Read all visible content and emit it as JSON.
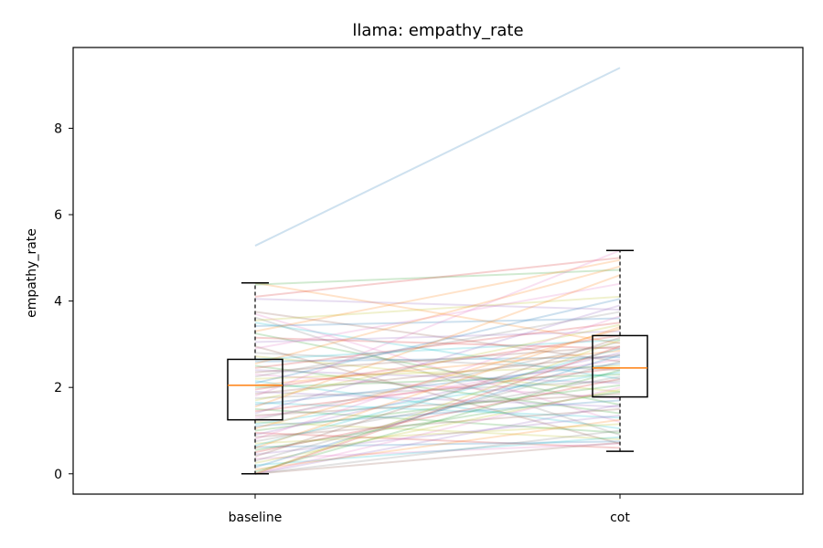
{
  "chart_data": {
    "type": "boxplot-paired-lines",
    "title": "llama: empathy_rate",
    "xlabel": "",
    "ylabel": "empathy_rate",
    "categories": [
      "baseline",
      "cot"
    ],
    "ylim": [
      -0.47,
      9.87
    ],
    "yticks": [
      0,
      2,
      4,
      6,
      8
    ],
    "grid": false,
    "boxes": [
      {
        "name": "baseline",
        "whisker_low": 0.0,
        "q1": 1.25,
        "median": 2.05,
        "q3": 2.65,
        "whisker_high": 4.42
      },
      {
        "name": "cot",
        "whisker_low": 0.52,
        "q1": 1.78,
        "median": 2.45,
        "q3": 3.2,
        "whisker_high": 5.17
      }
    ],
    "pairs": [
      [
        5.28,
        9.4
      ],
      [
        4.42,
        3.02
      ],
      [
        4.38,
        4.72
      ],
      [
        4.1,
        5.0
      ],
      [
        4.05,
        3.8
      ],
      [
        3.75,
        2.6
      ],
      [
        3.7,
        1.2
      ],
      [
        3.62,
        0.9
      ],
      [
        3.55,
        4.1
      ],
      [
        3.5,
        2.2
      ],
      [
        3.42,
        3.6
      ],
      [
        3.3,
        4.95
      ],
      [
        3.25,
        1.6
      ],
      [
        3.15,
        2.9
      ],
      [
        3.05,
        3.3
      ],
      [
        2.95,
        0.7
      ],
      [
        2.9,
        4.4
      ],
      [
        2.8,
        2.4
      ],
      [
        2.72,
        1.9
      ],
      [
        2.65,
        3.1
      ],
      [
        2.6,
        2.7
      ],
      [
        2.55,
        4.8
      ],
      [
        2.5,
        1.4
      ],
      [
        2.45,
        3.5
      ],
      [
        2.4,
        2.1
      ],
      [
        2.35,
        2.95
      ],
      [
        2.3,
        1.75
      ],
      [
        2.25,
        3.75
      ],
      [
        2.2,
        2.5
      ],
      [
        2.15,
        1.05
      ],
      [
        2.1,
        4.05
      ],
      [
        2.05,
        2.85
      ],
      [
        2.0,
        2.3
      ],
      [
        1.95,
        3.2
      ],
      [
        1.9,
        1.55
      ],
      [
        1.85,
        2.75
      ],
      [
        1.8,
        5.17
      ],
      [
        1.75,
        2.15
      ],
      [
        1.7,
        3.45
      ],
      [
        1.65,
        1.3
      ],
      [
        1.6,
        2.55
      ],
      [
        1.55,
        4.6
      ],
      [
        1.5,
        0.95
      ],
      [
        1.45,
        2.45
      ],
      [
        1.4,
        3.9
      ],
      [
        1.35,
        1.85
      ],
      [
        1.3,
        2.65
      ],
      [
        1.25,
        3.05
      ],
      [
        1.2,
        0.8
      ],
      [
        1.15,
        2.35
      ],
      [
        1.1,
        1.7
      ],
      [
        1.05,
        3.35
      ],
      [
        1.0,
        2.05
      ],
      [
        0.95,
        0.6
      ],
      [
        0.9,
        2.8
      ],
      [
        0.85,
        1.5
      ],
      [
        0.8,
        3.65
      ],
      [
        0.75,
        2.25
      ],
      [
        0.7,
        1.15
      ],
      [
        0.65,
        2.9
      ],
      [
        0.62,
        0.75
      ],
      [
        0.6,
        3.4
      ],
      [
        0.55,
        1.9
      ],
      [
        0.5,
        2.2
      ],
      [
        0.45,
        1.35
      ],
      [
        0.4,
        3.15
      ],
      [
        0.35,
        0.7
      ],
      [
        0.3,
        2.6
      ],
      [
        0.25,
        1.95
      ],
      [
        0.2,
        0.85
      ],
      [
        0.15,
        2.75
      ],
      [
        0.1,
        1.25
      ],
      [
        0.05,
        2.4
      ],
      [
        0.0,
        2.95
      ],
      [
        0.0,
        1.6
      ],
      [
        0.0,
        0.72
      ],
      [
        0.0,
        2.0
      ],
      [
        0.0,
        1.0
      ],
      [
        0.0,
        3.1
      ]
    ]
  },
  "colors": {
    "palette": [
      "#1f77b4",
      "#ff7f0e",
      "#2ca02c",
      "#d62728",
      "#9467bd",
      "#8c564b",
      "#e377c2",
      "#7f7f7f",
      "#bcbd22",
      "#17becf"
    ],
    "median": "#ff7f0e",
    "box": "#000000"
  }
}
